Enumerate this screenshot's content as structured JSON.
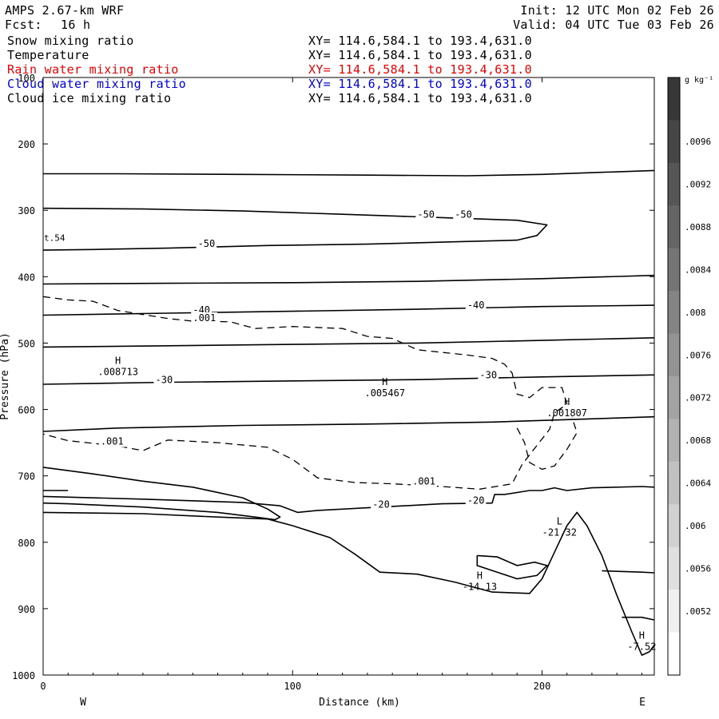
{
  "header": {
    "model": "AMPS 2.67-km WRF",
    "fcst_label": "Fcst:",
    "fcst_value": "16 h",
    "init": "Init: 12 UTC Mon 02 Feb 26",
    "valid": "Valid: 04 UTC Tue 03 Feb 26"
  },
  "fields": [
    {
      "name": "Snow mixing ratio",
      "xy": "XY= 114.6,584.1 to 193.4,631.0",
      "color": "#000000"
    },
    {
      "name": "Temperature",
      "xy": "XY= 114.6,584.1 to 193.4,631.0",
      "color": "#000000"
    },
    {
      "name": "Rain water mixing ratio",
      "xy": "XY= 114.6,584.1 to 193.4,631.0",
      "color": "#ee0000"
    },
    {
      "name": "Cloud water mixing ratio",
      "xy": "XY= 114.6,584.1 to 193.4,631.0",
      "color": "#0000dd"
    },
    {
      "name": "Cloud ice mixing ratio",
      "xy": "XY= 114.6,584.1 to 193.4,631.0",
      "color": "#000000"
    }
  ],
  "chart_data": {
    "type": "contour-cross-section",
    "xlabel": "Distance (km)",
    "ylabel": "Pressure (hPa)",
    "xlim": [
      0,
      245
    ],
    "ylim": [
      1000,
      100
    ],
    "x_ticks": [
      0,
      100,
      200
    ],
    "y_ticks": [
      100,
      200,
      300,
      400,
      500,
      600,
      700,
      800,
      900,
      1000
    ],
    "x_end_labels": {
      "left": "W",
      "right": "E"
    },
    "left_edge_label": "t.54",
    "colorbar": {
      "unit": "g kg⁻¹",
      "tick_labels": [
        ".0096",
        ".0092",
        ".0088",
        ".0084",
        ".008",
        ".0076",
        ".0072",
        ".0068",
        ".0064",
        ".006",
        ".0056",
        ".0052"
      ],
      "tick_values": [
        0.0096,
        0.0092,
        0.0088,
        0.0084,
        0.008,
        0.0076,
        0.0072,
        0.0068,
        0.0064,
        0.006,
        0.0056,
        0.0052
      ]
    },
    "temperature_contours": [
      {
        "level": "-50",
        "points": [
          [
            0,
            245
          ],
          [
            30,
            245
          ],
          [
            80,
            246
          ],
          [
            130,
            247
          ],
          [
            170,
            248
          ],
          [
            200,
            246
          ],
          [
            245,
            240
          ]
        ]
      },
      {
        "level": "-50",
        "points": [
          [
            0,
            297
          ],
          [
            40,
            298
          ],
          [
            80,
            301
          ],
          [
            120,
            306
          ],
          [
            160,
            311
          ],
          [
            190,
            315
          ],
          [
            202,
            322
          ],
          [
            198,
            338
          ],
          [
            190,
            345
          ],
          [
            160,
            348
          ],
          [
            130,
            351
          ],
          [
            90,
            353
          ],
          [
            50,
            357
          ],
          [
            20,
            359
          ],
          [
            0,
            360
          ]
        ]
      },
      {
        "level": "",
        "points": [
          [
            0,
            411
          ],
          [
            50,
            410
          ],
          [
            100,
            409
          ],
          [
            150,
            407
          ],
          [
            200,
            403
          ],
          [
            245,
            398
          ]
        ]
      },
      {
        "level": "-40",
        "points": [
          [
            0,
            458
          ],
          [
            50,
            455
          ],
          [
            100,
            452
          ],
          [
            150,
            449
          ],
          [
            200,
            445
          ],
          [
            245,
            443
          ]
        ]
      },
      {
        "level": "",
        "points": [
          [
            0,
            506
          ],
          [
            50,
            504
          ],
          [
            100,
            502
          ],
          [
            150,
            500
          ],
          [
            200,
            496
          ],
          [
            245,
            492
          ]
        ]
      },
      {
        "level": "-30",
        "points": [
          [
            0,
            562
          ],
          [
            50,
            559
          ],
          [
            100,
            557
          ],
          [
            150,
            555
          ],
          [
            200,
            551
          ],
          [
            245,
            548
          ]
        ]
      },
      {
        "level": "",
        "points": [
          [
            0,
            633
          ],
          [
            30,
            628
          ],
          [
            80,
            624
          ],
          [
            130,
            622
          ],
          [
            180,
            619
          ],
          [
            245,
            611
          ]
        ]
      },
      {
        "level": "-20",
        "points": [
          [
            0,
            731
          ],
          [
            40,
            735
          ],
          [
            80,
            740
          ],
          [
            95,
            745
          ],
          [
            102,
            755
          ],
          [
            110,
            752
          ],
          [
            130,
            748
          ],
          [
            160,
            742
          ],
          [
            180,
            741
          ],
          [
            181,
            728
          ],
          [
            185,
            728
          ],
          [
            195,
            722
          ],
          [
            200,
            722
          ],
          [
            205,
            718
          ],
          [
            210,
            722
          ],
          [
            220,
            718
          ],
          [
            240,
            716
          ],
          [
            245,
            717
          ]
        ]
      },
      {
        "level": "",
        "points": [
          [
            0,
            687
          ],
          [
            20,
            697
          ],
          [
            40,
            708
          ],
          [
            60,
            717
          ],
          [
            80,
            733
          ],
          [
            90,
            750
          ],
          [
            95,
            762
          ],
          [
            93,
            766
          ],
          [
            85,
            762
          ],
          [
            70,
            755
          ],
          [
            40,
            747
          ],
          [
            10,
            742
          ],
          [
            0,
            741
          ]
        ]
      },
      {
        "level": "",
        "points": [
          [
            0,
            722
          ],
          [
            10,
            722
          ]
        ]
      },
      {
        "level": "",
        "points": [
          [
            224,
            843
          ],
          [
            240,
            845
          ],
          [
            245,
            846
          ]
        ]
      },
      {
        "level": "",
        "points": [
          [
            232,
            913
          ],
          [
            240,
            913
          ],
          [
            245,
            917
          ]
        ]
      }
    ],
    "terrain": {
      "points": [
        [
          0,
          755
        ],
        [
          40,
          757
        ],
        [
          70,
          762
        ],
        [
          90,
          765
        ],
        [
          100,
          775
        ],
        [
          115,
          793
        ],
        [
          125,
          818
        ],
        [
          135,
          845
        ],
        [
          150,
          848
        ],
        [
          165,
          860
        ],
        [
          180,
          875
        ],
        [
          195,
          877
        ],
        [
          200,
          855
        ],
        [
          205,
          815
        ],
        [
          210,
          775
        ],
        [
          214,
          755
        ],
        [
          218,
          775
        ],
        [
          224,
          820
        ],
        [
          230,
          880
        ],
        [
          236,
          935
        ],
        [
          240,
          970
        ],
        [
          243,
          965
        ],
        [
          245,
          955
        ]
      ]
    },
    "rain_dashed_contours": [
      {
        "level": ".001",
        "points": [
          [
            0,
            430
          ],
          [
            10,
            435
          ],
          [
            20,
            437
          ],
          [
            30,
            451
          ],
          [
            40,
            457
          ],
          [
            50,
            463
          ],
          [
            60,
            467
          ],
          [
            75,
            468
          ],
          [
            85,
            478
          ],
          [
            100,
            475
          ],
          [
            120,
            478
          ],
          [
            130,
            490
          ],
          [
            140,
            493
          ],
          [
            150,
            510
          ],
          [
            160,
            514
          ],
          [
            170,
            518
          ],
          [
            180,
            523
          ],
          [
            185,
            532
          ],
          [
            188,
            545
          ],
          [
            190,
            577
          ],
          [
            195,
            582
          ],
          [
            200,
            567
          ],
          [
            208,
            567
          ],
          [
            210,
            592
          ],
          [
            205,
            605
          ],
          [
            203,
            630
          ],
          [
            198,
            654
          ],
          [
            192,
            683
          ],
          [
            188,
            712
          ],
          [
            175,
            720
          ],
          [
            160,
            716
          ],
          [
            140,
            712
          ],
          [
            125,
            710
          ],
          [
            110,
            703
          ],
          [
            100,
            675
          ],
          [
            90,
            657
          ],
          [
            70,
            650
          ],
          [
            50,
            646
          ],
          [
            40,
            662
          ],
          [
            30,
            655
          ],
          [
            10,
            647
          ],
          [
            0,
            637
          ]
        ]
      },
      {
        "level": "",
        "points": [
          [
            190,
            628
          ],
          [
            193,
            650
          ],
          [
            195,
            680
          ],
          [
            200,
            690
          ],
          [
            205,
            685
          ],
          [
            210,
            660
          ],
          [
            214,
            635
          ],
          [
            212,
            612
          ]
        ]
      }
    ],
    "small_contour": {
      "points": [
        [
          174,
          820
        ],
        [
          182,
          822
        ],
        [
          190,
          835
        ],
        [
          197,
          830
        ],
        [
          202,
          835
        ],
        [
          198,
          850
        ],
        [
          190,
          855
        ],
        [
          182,
          845
        ],
        [
          174,
          835
        ],
        [
          174,
          820
        ]
      ]
    },
    "annotations": [
      {
        "type": "H",
        "value": ".008713",
        "x": 30,
        "p": 548
      },
      {
        "type": "H",
        "value": ".005467",
        "x": 137,
        "p": 580
      },
      {
        "type": "H",
        "value": ".001807",
        "x": 210,
        "p": 610
      },
      {
        "type": "L",
        "value": "-21.32",
        "x": 207,
        "p": 790
      },
      {
        "type": "H",
        "value": "-14.13",
        "x": 175,
        "p": 872
      },
      {
        "type": "H",
        "value": "-7.52",
        "x": 240,
        "p": 962
      }
    ],
    "contour_labels": [
      {
        "text": "-50",
        "x": 150,
        "p": 311
      },
      {
        "text": "-50",
        "x": 165,
        "p": 311
      },
      {
        "text": "-50",
        "x": 62,
        "p": 355
      },
      {
        "text": "-40",
        "x": 60,
        "p": 455
      },
      {
        "text": "-40",
        "x": 170,
        "p": 448
      },
      {
        "text": "-30",
        "x": 45,
        "p": 560
      },
      {
        "text": "-30",
        "x": 175,
        "p": 553
      },
      {
        "text": "-20",
        "x": 132,
        "p": 748
      },
      {
        "text": "-20",
        "x": 170,
        "p": 742
      },
      {
        "text": ".001",
        "x": 60,
        "p": 467
      },
      {
        "text": ".001",
        "x": 23,
        "p": 653
      },
      {
        "text": ".001",
        "x": 148,
        "p": 713
      }
    ]
  }
}
